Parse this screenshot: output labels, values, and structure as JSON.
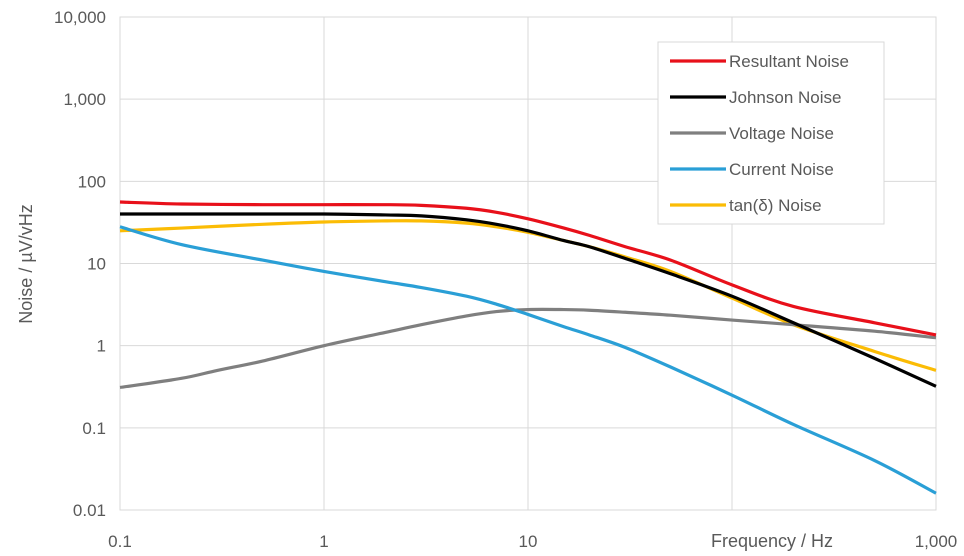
{
  "chart_data": {
    "type": "line",
    "title": "",
    "xlabel": "Frequency / Hz",
    "ylabel": "Noise / µV/vHz",
    "x_scale": "log",
    "y_scale": "log",
    "xlim": [
      0.1,
      1000
    ],
    "ylim": [
      0.01,
      10000
    ],
    "grid": true,
    "legend_position": "top-right",
    "x_ticks": [
      {
        "value": 0.1,
        "label": "0.1"
      },
      {
        "value": 1,
        "label": "1"
      },
      {
        "value": 10,
        "label": "10"
      },
      {
        "value": 1000,
        "label": "1,000"
      }
    ],
    "y_ticks": [
      {
        "value": 0.01,
        "label": "0.01"
      },
      {
        "value": 0.1,
        "label": "0.1"
      },
      {
        "value": 1,
        "label": "1"
      },
      {
        "value": 10,
        "label": "10"
      },
      {
        "value": 100,
        "label": "100"
      },
      {
        "value": 1000,
        "label": "1,000"
      },
      {
        "value": 10000,
        "label": "10,000"
      }
    ],
    "series": [
      {
        "name": "Resultant Noise",
        "color": "#e8101a",
        "x": [
          0.1,
          0.2,
          0.5,
          1,
          2,
          3,
          5,
          7,
          10,
          15,
          20,
          30,
          50,
          100,
          200,
          500,
          1000
        ],
        "y": [
          56,
          53,
          52,
          52,
          52,
          51,
          47,
          42,
          35,
          27,
          22,
          16,
          11,
          5.5,
          3.0,
          1.9,
          1.35
        ]
      },
      {
        "name": "Johnson Noise",
        "color": "#000000",
        "x": [
          0.1,
          0.2,
          0.5,
          1,
          2,
          3,
          5,
          7,
          10,
          15,
          20,
          30,
          50,
          100,
          200,
          500,
          1000
        ],
        "y": [
          40,
          40,
          40,
          40,
          39,
          38,
          34,
          30,
          25,
          19,
          16,
          11.5,
          7.5,
          4.0,
          1.9,
          0.7,
          0.32
        ]
      },
      {
        "name": "Voltage Noise",
        "color": "#7f7f7f",
        "x": [
          0.1,
          0.2,
          0.3,
          0.5,
          1,
          2,
          3,
          5,
          7,
          10,
          15,
          20,
          30,
          50,
          100,
          200,
          500,
          1000
        ],
        "y": [
          0.31,
          0.4,
          0.5,
          0.65,
          1.0,
          1.45,
          1.8,
          2.3,
          2.6,
          2.75,
          2.75,
          2.7,
          2.55,
          2.35,
          2.05,
          1.8,
          1.5,
          1.25
        ]
      },
      {
        "name": "Current Noise",
        "color": "#2a9fd6",
        "x": [
          0.1,
          0.2,
          0.5,
          1,
          2,
          3,
          5,
          7,
          10,
          15,
          20,
          30,
          50,
          100,
          200,
          500,
          1000
        ],
        "y": [
          28,
          17,
          11,
          8,
          6,
          5.1,
          4.0,
          3.2,
          2.4,
          1.7,
          1.35,
          0.95,
          0.55,
          0.25,
          0.11,
          0.04,
          0.016
        ]
      },
      {
        "name": "tan(δ) Noise",
        "color": "#fbbc05",
        "x": [
          0.1,
          0.2,
          0.5,
          1,
          2,
          3,
          5,
          7,
          10,
          15,
          20,
          30,
          50,
          100,
          200,
          500,
          1000
        ],
        "y": [
          25,
          27,
          30,
          32,
          33,
          33,
          31,
          28,
          24,
          19,
          16,
          12,
          8,
          3.8,
          1.8,
          0.85,
          0.5
        ]
      }
    ]
  }
}
